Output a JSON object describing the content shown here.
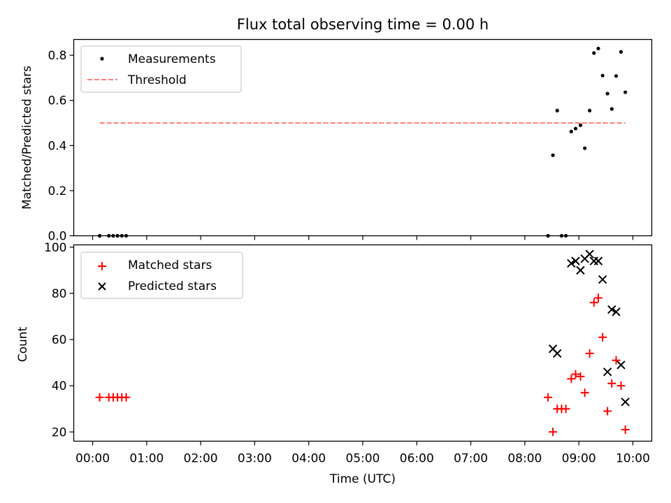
{
  "chart_data": [
    {
      "type": "scatter",
      "title": "Flux total observing time = 0.00 h",
      "xlabel": "",
      "ylabel": "Matched/Predicted stars",
      "xlim_hours": [
        -0.35,
        10.35
      ],
      "ylim": [
        0,
        0.87
      ],
      "yticks": [
        0.0,
        0.2,
        0.4,
        0.6,
        0.8
      ],
      "ytick_labels": [
        "0.0",
        "0.2",
        "0.4",
        "0.6",
        "0.8"
      ],
      "legend": {
        "position": "top-left",
        "entries": [
          "Measurements",
          "Threshold"
        ]
      },
      "series": [
        {
          "name": "Measurements",
          "marker": "dot",
          "color": "#000000",
          "x": [
            0.13,
            0.3,
            0.38,
            0.46,
            0.54,
            0.62,
            8.43,
            8.52,
            8.6,
            8.68,
            8.76,
            8.86,
            8.94,
            9.03,
            9.11,
            9.2,
            9.28,
            9.36,
            9.44,
            9.53,
            9.61,
            9.69,
            9.78,
            9.86
          ],
          "y": [
            0.0,
            0.0,
            0.0,
            0.0,
            0.0,
            0.0,
            0.0,
            0.357,
            0.555,
            0.0,
            0.0,
            0.462,
            0.475,
            0.49,
            0.388,
            0.555,
            0.81,
            0.83,
            0.71,
            0.63,
            0.562,
            0.708,
            0.815,
            0.636
          ]
        },
        {
          "name": "Threshold",
          "marker": "dashed-line",
          "color": "#ff7f7f",
          "x": [
            0.13,
            9.86
          ],
          "y": [
            0.5,
            0.5
          ]
        }
      ]
    },
    {
      "type": "scatter",
      "xlabel": "Time (UTC)",
      "ylabel": "Count",
      "xlim_hours": [
        -0.35,
        10.35
      ],
      "ylim": [
        16,
        101
      ],
      "yticks": [
        20,
        40,
        60,
        80,
        100
      ],
      "ytick_labels": [
        "20",
        "40",
        "60",
        "80",
        "100"
      ],
      "xticks_hours": [
        0,
        1,
        2,
        3,
        4,
        5,
        6,
        7,
        8,
        9,
        10
      ],
      "xtick_labels": [
        "00:00",
        "01:00",
        "02:00",
        "03:00",
        "04:00",
        "05:00",
        "06:00",
        "07:00",
        "08:00",
        "09:00",
        "10:00"
      ],
      "legend": {
        "position": "top-left",
        "entries": [
          "Matched stars",
          "Predicted stars"
        ]
      },
      "series": [
        {
          "name": "Matched stars",
          "marker": "plus",
          "color": "#ff0000",
          "x": [
            0.13,
            0.3,
            0.38,
            0.46,
            0.54,
            0.62,
            8.43,
            8.52,
            8.6,
            8.68,
            8.76,
            8.86,
            8.94,
            9.03,
            9.11,
            9.2,
            9.28,
            9.36,
            9.44,
            9.53,
            9.61,
            9.69,
            9.78,
            9.86
          ],
          "y": [
            35,
            35,
            35,
            35,
            35,
            35,
            35,
            20,
            30,
            30,
            30,
            43,
            45,
            44,
            37,
            54,
            76,
            78,
            61,
            29,
            41,
            51,
            40,
            21
          ]
        },
        {
          "name": "Predicted stars",
          "marker": "x",
          "color": "#000000",
          "x": [
            8.52,
            8.6,
            8.86,
            8.94,
            9.03,
            9.11,
            9.2,
            9.28,
            9.36,
            9.44,
            9.53,
            9.61,
            9.69,
            9.78,
            9.86
          ],
          "y": [
            56,
            54,
            93,
            94,
            90,
            95,
            97,
            94,
            94,
            86,
            46,
            73,
            72,
            49,
            33
          ]
        }
      ]
    }
  ]
}
